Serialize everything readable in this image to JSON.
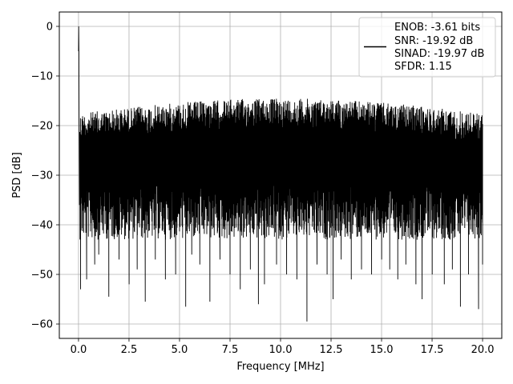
{
  "chart_data": {
    "type": "line",
    "xlabel": "Frequency [MHz]",
    "ylabel": "PSD [dB]",
    "xlim": [
      -0.95,
      20.95
    ],
    "ylim": [
      -62.9,
      2.9
    ],
    "xticks": [
      0.0,
      2.5,
      5.0,
      7.5,
      10.0,
      12.5,
      15.0,
      17.5,
      20.0
    ],
    "xtick_labels": [
      "0.0",
      "2.5",
      "5.0",
      "7.5",
      "10.0",
      "12.5",
      "15.0",
      "17.5",
      "20.0"
    ],
    "yticks": [
      0,
      -10,
      -20,
      -30,
      -40,
      -50,
      -60
    ],
    "ytick_labels": [
      "0",
      "−10",
      "−20",
      "−30",
      "−40",
      "−50",
      "−60"
    ],
    "grid": true,
    "legend_position": "top-right",
    "legend_lines": [
      "ENOB: -3.61 bits",
      "SNR: -19.92 dB",
      "SINAD: -19.97 dB",
      "SFDR: 1.15"
    ],
    "series": [
      {
        "color": "#000000",
        "peak": {
          "x": 0.0,
          "y": 0.0
        },
        "noise_floor_band": {
          "x_range": [
            0.05,
            20.0
          ],
          "y_range": [
            -42,
            -15
          ]
        },
        "spikes": [
          {
            "x": 0.1,
            "y": -53
          },
          {
            "x": 0.4,
            "y": -51
          },
          {
            "x": 0.8,
            "y": -48
          },
          {
            "x": 1.0,
            "y": -46
          },
          {
            "x": 1.5,
            "y": -54.5
          },
          {
            "x": 2.0,
            "y": -47
          },
          {
            "x": 2.5,
            "y": -52
          },
          {
            "x": 2.9,
            "y": -49
          },
          {
            "x": 3.3,
            "y": -55.5
          },
          {
            "x": 3.8,
            "y": -47
          },
          {
            "x": 4.3,
            "y": -51
          },
          {
            "x": 4.8,
            "y": -50
          },
          {
            "x": 5.3,
            "y": -56.5
          },
          {
            "x": 5.6,
            "y": -46
          },
          {
            "x": 6.0,
            "y": -48
          },
          {
            "x": 6.5,
            "y": -55.5
          },
          {
            "x": 7.0,
            "y": -47
          },
          {
            "x": 7.5,
            "y": -50
          },
          {
            "x": 8.0,
            "y": -53
          },
          {
            "x": 8.5,
            "y": -49
          },
          {
            "x": 8.9,
            "y": -56
          },
          {
            "x": 9.2,
            "y": -52
          },
          {
            "x": 9.8,
            "y": -48
          },
          {
            "x": 10.3,
            "y": -50
          },
          {
            "x": 10.8,
            "y": -51
          },
          {
            "x": 11.3,
            "y": -59.5
          },
          {
            "x": 11.8,
            "y": -48
          },
          {
            "x": 12.3,
            "y": -50
          },
          {
            "x": 12.6,
            "y": -55
          },
          {
            "x": 13.0,
            "y": -47
          },
          {
            "x": 13.5,
            "y": -51
          },
          {
            "x": 14.0,
            "y": -49
          },
          {
            "x": 14.5,
            "y": -50
          },
          {
            "x": 15.0,
            "y": -47
          },
          {
            "x": 15.4,
            "y": -49
          },
          {
            "x": 15.8,
            "y": -51
          },
          {
            "x": 16.2,
            "y": -48
          },
          {
            "x": 16.7,
            "y": -52
          },
          {
            "x": 17.0,
            "y": -55
          },
          {
            "x": 17.5,
            "y": -50
          },
          {
            "x": 18.1,
            "y": -52
          },
          {
            "x": 18.5,
            "y": -49
          },
          {
            "x": 18.9,
            "y": -56.5
          },
          {
            "x": 19.3,
            "y": -50
          },
          {
            "x": 19.8,
            "y": -57
          }
        ]
      }
    ]
  }
}
